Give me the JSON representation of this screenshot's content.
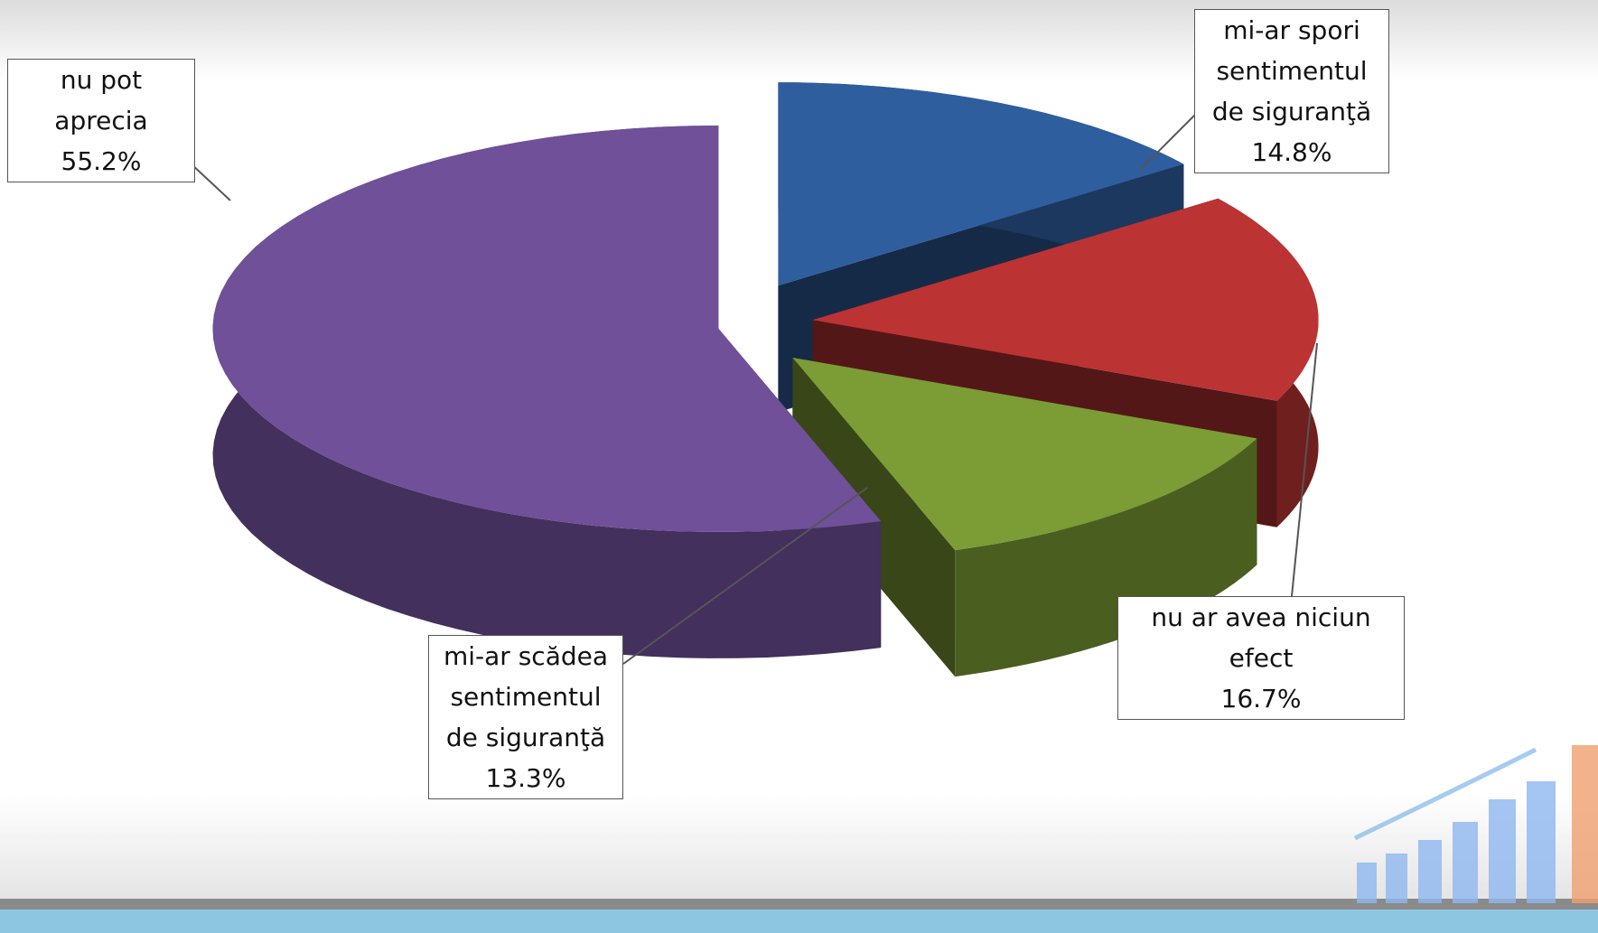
{
  "chart_data": {
    "type": "pie",
    "categories": [
      "nu pot aprecia",
      "mi-ar spori sentimentul de siguranţă",
      "nu ar avea niciun efect",
      "mi-ar scădea sentimentul de siguranţă"
    ],
    "values": [
      55.2,
      14.8,
      16.7,
      13.3
    ],
    "value_labels": [
      "55.2%",
      "14.8%",
      "16.7%",
      "13.3%"
    ],
    "colors": [
      "#6f5099",
      "#2e5e9e",
      "#bb3333",
      "#7c9c36"
    ]
  }
}
